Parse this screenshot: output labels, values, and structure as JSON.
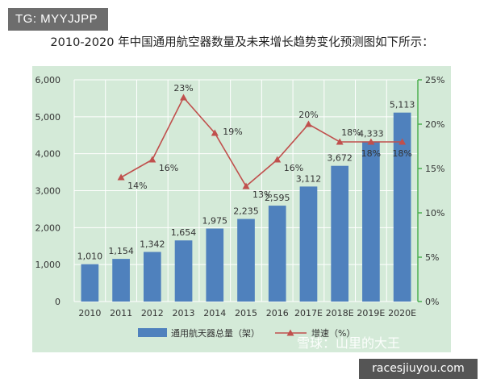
{
  "watermark_tag": "TG: MYYJJPP",
  "page_title": "2010-2020 年中国通用航空器数量及未来增长趋势变化预测图如下所示：",
  "site_badge": "racesjiuyou.com",
  "watermark_overlay": "雪球：山里的大王",
  "chart_data": {
    "type": "bar",
    "categories": [
      "2010",
      "2011",
      "2012",
      "2013",
      "2014",
      "2015",
      "2016",
      "2017E",
      "2018E",
      "2019E",
      "2020E"
    ],
    "series": [
      {
        "name": "通用航天器总量（架）",
        "type": "bar",
        "axis": "left",
        "values": [
          1010,
          1154,
          1342,
          1654,
          1975,
          2235,
          2595,
          3112,
          3672,
          4333,
          5113
        ],
        "labels": [
          "1,010",
          "1,154",
          "1,342",
          "1,654",
          "1,975",
          "2,235",
          "2,595",
          "3,112",
          "3,672",
          "4,333",
          "5,113"
        ]
      },
      {
        "name": "增速（%）",
        "type": "line",
        "axis": "right",
        "values": [
          null,
          14,
          16,
          23,
          19,
          13,
          16,
          20,
          18,
          18,
          18
        ],
        "labels": [
          "",
          "14%",
          "16%",
          "23%",
          "19%",
          "13%",
          "16%",
          "20%",
          "18%",
          "18%",
          "18%"
        ]
      }
    ],
    "y_left": {
      "min": 0,
      "max": 6000,
      "ticks": [
        "0",
        "1,000",
        "2,000",
        "3,000",
        "4,000",
        "5,000",
        "6,000"
      ]
    },
    "y_right": {
      "min": 0,
      "max": 25,
      "ticks": [
        "0%",
        "5%",
        "10%",
        "15%",
        "20%",
        "25%"
      ]
    },
    "grid": true,
    "legend_position": "bottom",
    "colors": {
      "bar": "#4f81bd",
      "line": "#c0504d",
      "panel": "#d4ead8",
      "grid": "#ffffff",
      "right_axis": "#4caf50"
    }
  }
}
